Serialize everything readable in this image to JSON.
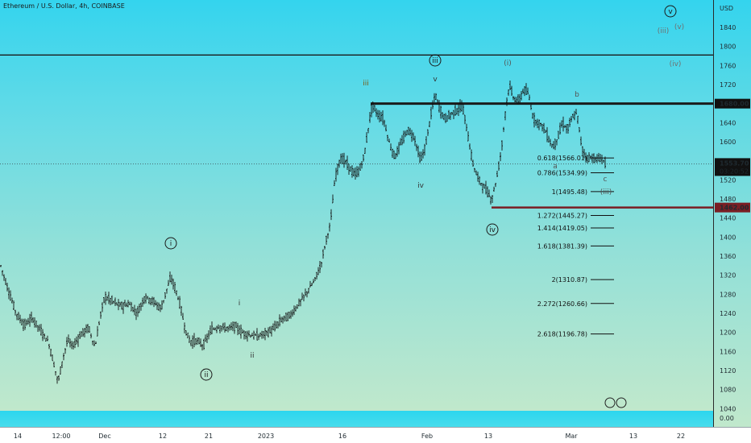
{
  "chart_title": "Ethereum / U.S. Dollar, 4h, COINBASE",
  "currency_label": "USD",
  "chart_data": {
    "type": "candlestick",
    "title": "Ethereum / U.S. Dollar, 4h, COINBASE",
    "symbol": "ETH/USD",
    "interval": "4h",
    "exchange": "COINBASE",
    "ylim": [
      1030,
      1920
    ],
    "grid": false,
    "y_ticks": [
      1840,
      1800,
      1760,
      1720,
      1680,
      1640,
      1600,
      1560,
      1520,
      1480,
      1440,
      1400,
      1360,
      1320,
      1280,
      1240,
      1200,
      1160,
      1120,
      1080,
      1040
    ],
    "x_ticks": [
      "14",
      "12:00",
      "Dec",
      "12",
      "21",
      "2023",
      "16",
      "Feb",
      "13",
      "Mar",
      "13",
      "22"
    ],
    "volume_axis_label": "0.00",
    "current_price": "1553.70",
    "countdown": "03:20:52",
    "key_levels": [
      {
        "label": "1680.00",
        "value": 1680,
        "color": "#1b1b1b"
      },
      {
        "label": "1462.00",
        "value": 1462,
        "color": "#7a1e24"
      }
    ],
    "top_line_value": 1782,
    "price_points": [
      [
        0,
        1345
      ],
      [
        10,
        1290
      ],
      [
        20,
        1240
      ],
      [
        30,
        1215
      ],
      [
        40,
        1230
      ],
      [
        50,
        1205
      ],
      [
        60,
        1180
      ],
      [
        66,
        1140
      ],
      [
        72,
        1095
      ],
      [
        78,
        1145
      ],
      [
        84,
        1185
      ],
      [
        90,
        1170
      ],
      [
        100,
        1195
      ],
      [
        110,
        1210
      ],
      [
        118,
        1168
      ],
      [
        124,
        1230
      ],
      [
        130,
        1275
      ],
      [
        140,
        1265
      ],
      [
        150,
        1255
      ],
      [
        160,
        1260
      ],
      [
        170,
        1240
      ],
      [
        180,
        1275
      ],
      [
        190,
        1265
      ],
      [
        200,
        1250
      ],
      [
        206,
        1285
      ],
      [
        212,
        1315
      ],
      [
        218,
        1290
      ],
      [
        224,
        1255
      ],
      [
        230,
        1205
      ],
      [
        236,
        1180
      ],
      [
        244,
        1183
      ],
      [
        252,
        1172
      ],
      [
        262,
        1205
      ],
      [
        272,
        1212
      ],
      [
        282,
        1208
      ],
      [
        292,
        1213
      ],
      [
        300,
        1200
      ],
      [
        310,
        1195
      ],
      [
        320,
        1192
      ],
      [
        330,
        1198
      ],
      [
        340,
        1208
      ],
      [
        350,
        1228
      ],
      [
        360,
        1235
      ],
      [
        370,
        1258
      ],
      [
        380,
        1282
      ],
      [
        390,
        1308
      ],
      [
        398,
        1340
      ],
      [
        404,
        1388
      ],
      [
        410,
        1428
      ],
      [
        416,
        1525
      ],
      [
        422,
        1565
      ],
      [
        428,
        1560
      ],
      [
        434,
        1545
      ],
      [
        440,
        1530
      ],
      [
        446,
        1540
      ],
      [
        452,
        1570
      ],
      [
        458,
        1640
      ],
      [
        462,
        1678
      ],
      [
        468,
        1658
      ],
      [
        476,
        1648
      ],
      [
        484,
        1592
      ],
      [
        490,
        1568
      ],
      [
        498,
        1598
      ],
      [
        506,
        1625
      ],
      [
        514,
        1610
      ],
      [
        522,
        1560
      ],
      [
        528,
        1590
      ],
      [
        534,
        1650
      ],
      [
        540,
        1700
      ],
      [
        546,
        1668
      ],
      [
        552,
        1648
      ],
      [
        560,
        1658
      ],
      [
        568,
        1668
      ],
      [
        574,
        1675
      ],
      [
        580,
        1620
      ],
      [
        586,
        1560
      ],
      [
        592,
        1528
      ],
      [
        598,
        1510
      ],
      [
        604,
        1498
      ],
      [
        610,
        1478
      ],
      [
        616,
        1520
      ],
      [
        622,
        1580
      ],
      [
        628,
        1675
      ],
      [
        632,
        1718
      ],
      [
        638,
        1690
      ],
      [
        644,
        1685
      ],
      [
        650,
        1710
      ],
      [
        656,
        1700
      ],
      [
        662,
        1648
      ],
      [
        668,
        1640
      ],
      [
        674,
        1632
      ],
      [
        680,
        1610
      ],
      [
        686,
        1588
      ],
      [
        692,
        1608
      ],
      [
        698,
        1640
      ],
      [
        704,
        1625
      ],
      [
        710,
        1650
      ],
      [
        716,
        1660
      ],
      [
        722,
        1588
      ],
      [
        728,
        1565
      ],
      [
        734,
        1568
      ],
      [
        740,
        1562
      ],
      [
        746,
        1566
      ],
      [
        752,
        1554
      ]
    ],
    "fibonacci_levels": [
      {
        "label": "0.618(1566.01)",
        "value": 1566.01
      },
      {
        "label": "0.786(1534.99)",
        "value": 1534.99
      },
      {
        "label": "1(1495.48)",
        "value": 1495.48
      },
      {
        "label": "1.272(1445.27)",
        "value": 1445.27
      },
      {
        "label": "1.414(1419.05)",
        "value": 1419.05
      },
      {
        "label": "1.618(1381.39)",
        "value": 1381.39
      },
      {
        "label": "2(1310.87)",
        "value": 1310.87
      },
      {
        "label": "2.272(1260.66)",
        "value": 1260.66
      },
      {
        "label": "2.618(1196.78)",
        "value": 1196.78
      }
    ],
    "wave_labels": [
      {
        "text": "i",
        "circled": true,
        "color": "#1a1a1a"
      },
      {
        "text": "ii",
        "circled": true,
        "color": "#1a1a1a"
      },
      {
        "text": "iii",
        "circled": true,
        "color": "#1a1a1a"
      },
      {
        "text": "iv",
        "circled": true,
        "color": "#1a1a1a"
      },
      {
        "text": "v",
        "circled": true,
        "color": "#1a1a1a"
      },
      {
        "text": "i",
        "circled": false,
        "color": "#333333"
      },
      {
        "text": "ii",
        "circled": false,
        "color": "#333333"
      },
      {
        "text": "iii",
        "circled": false,
        "color": "#7a5a16"
      },
      {
        "text": "iv",
        "circled": false,
        "color": "#333333"
      },
      {
        "text": "v",
        "circled": false,
        "color": "#333333"
      },
      {
        "text": "(i)",
        "circled": false,
        "color": "#555555"
      },
      {
        "text": "(iii)",
        "circled": false,
        "color": "#707070"
      },
      {
        "text": "(iv)",
        "circled": false,
        "color": "#707070"
      },
      {
        "text": "(v)",
        "circled": false,
        "color": "#707070"
      },
      {
        "text": "a",
        "circled": false,
        "color": "#555555"
      },
      {
        "text": "b",
        "circled": false,
        "color": "#555555"
      },
      {
        "text": "c",
        "circled": false,
        "color": "#555555"
      },
      {
        "text": "(iii)",
        "circled": false,
        "color": "#555555"
      }
    ]
  }
}
